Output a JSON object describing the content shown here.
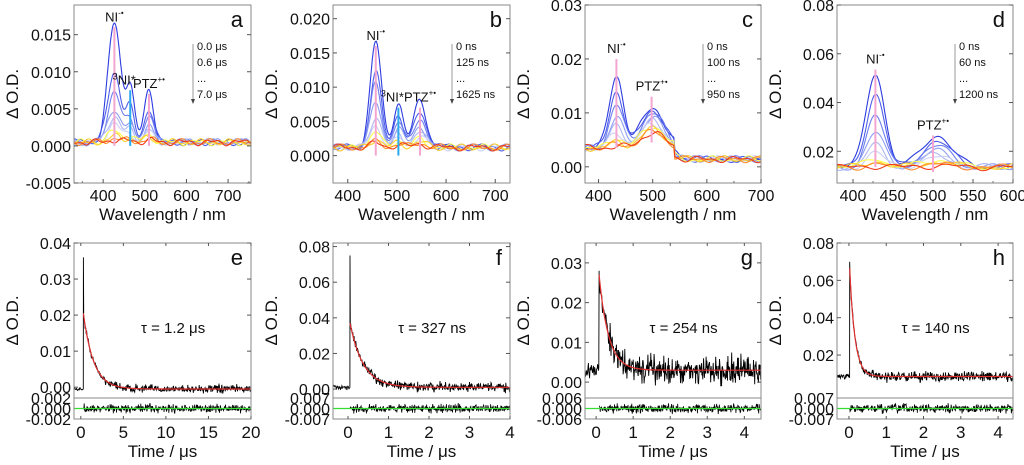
{
  "figure": {
    "rows": 2,
    "cols": 4
  },
  "chart_data": [
    {
      "panel": "a",
      "type": "line",
      "xlabel": "Wavelength / nm",
      "ylabel": "Δ O.D.",
      "xlim": [
        330,
        755
      ],
      "ylim": [
        -0.005,
        0.019
      ],
      "xticks": [
        400,
        500,
        600,
        700
      ],
      "yticks": [
        -0.005,
        0.0,
        0.005,
        0.01,
        0.015
      ],
      "ytick_labels": [
        "-0.005",
        "0.000",
        "0.005",
        "0.010",
        "0.015"
      ],
      "time_legend": [
        "0.0 μs",
        "0.6 μs",
        "...",
        "7.0 μs"
      ],
      "annotations": [
        {
          "label": "NI",
          "sup": "-•",
          "x": 427,
          "y": 0.016,
          "color": "#f4a6d0",
          "marker_from": 0.0
        },
        {
          "label": "NI*",
          "pre": "3",
          "x": 465,
          "y": 0.0075,
          "color": "#2aa8f0",
          "marker_from": 0.0
        },
        {
          "label": "PTZ",
          "sup": "+•",
          "x": 510,
          "y": 0.007,
          "color": "#f4a6d0",
          "marker_from": 0.0
        }
      ],
      "peaks": [
        {
          "x": 427,
          "w": 22
        },
        {
          "x": 465,
          "w": 14
        },
        {
          "x": 510,
          "w": 16
        }
      ],
      "spectra_peak_amplitudes": [
        [
          0.016,
          0.0075,
          0.007
        ],
        [
          0.0095,
          0.0045,
          0.0045
        ],
        [
          0.0068,
          0.0032,
          0.0033
        ],
        [
          0.0045,
          0.0022,
          0.0024
        ],
        [
          0.0035,
          0.0016,
          0.0018
        ],
        [
          0.0025,
          0.0012,
          0.0014
        ],
        [
          0.0015,
          0.0008,
          0.001
        ],
        [
          0.0008,
          0.0005,
          0.0006
        ],
        [
          0.0005,
          0.0003,
          0.0004
        ],
        [
          0.0003,
          0.0002,
          0.0003
        ]
      ],
      "baseline": 0.0005
    },
    {
      "panel": "b",
      "type": "line",
      "xlabel": "Wavelength / nm",
      "ylabel": "Δ O.D.",
      "xlim": [
        370,
        730
      ],
      "ylim": [
        -0.004,
        0.022
      ],
      "xticks": [
        400,
        500,
        600,
        700
      ],
      "yticks": [
        0.0,
        0.005,
        0.01,
        0.015,
        0.02
      ],
      "ytick_labels": [
        "0.000",
        "0.005",
        "0.010",
        "0.015",
        "0.020"
      ],
      "time_legend": [
        "0 ns",
        "125 ns",
        "...",
        "1625 ns"
      ],
      "annotations": [
        {
          "label": "NI",
          "sup": "-•",
          "x": 457,
          "y": 0.016,
          "color": "#f4a6d0",
          "marker_from": 0.0
        },
        {
          "label": "NI*",
          "pre": "3",
          "x": 503,
          "y": 0.007,
          "color": "#2aa8f0",
          "marker_from": 0.0
        },
        {
          "label": "PTZ",
          "sup": "+•",
          "x": 547,
          "y": 0.007,
          "color": "#f4a6d0",
          "marker_from": 0.0
        }
      ],
      "peaks": [
        {
          "x": 457,
          "w": 16
        },
        {
          "x": 503,
          "w": 14
        },
        {
          "x": 547,
          "w": 18
        }
      ],
      "spectra_peak_amplitudes": [
        [
          0.0155,
          0.0065,
          0.0068
        ],
        [
          0.011,
          0.0048,
          0.005
        ],
        [
          0.0092,
          0.0038,
          0.0042
        ],
        [
          0.0065,
          0.0028,
          0.003
        ],
        [
          0.0045,
          0.002,
          0.0022
        ],
        [
          0.0032,
          0.0014,
          0.0016
        ],
        [
          0.0022,
          0.001,
          0.0012
        ],
        [
          0.0012,
          0.0007,
          0.0008
        ],
        [
          0.0008,
          0.0005,
          0.0006
        ],
        [
          0.0006,
          0.0004,
          0.0005
        ]
      ],
      "baseline": 0.0012
    },
    {
      "panel": "c",
      "type": "line",
      "xlabel": "Wavelength / nm",
      "ylabel": "Δ O.D.",
      "xlim": [
        375,
        700
      ],
      "ylim": [
        -0.003,
        0.03
      ],
      "xticks": [
        400,
        500,
        600,
        700
      ],
      "yticks": [
        0.0,
        0.01,
        0.02,
        0.03
      ],
      "ytick_labels": [
        "0.00",
        "0.01",
        "0.02",
        "0.03"
      ],
      "time_legend": [
        "0 ns",
        "100 ns",
        "...",
        "950 ns"
      ],
      "annotations": [
        {
          "label": "NI",
          "sup": "-•",
          "x": 433,
          "y": 0.02,
          "color": "#f4a6d0",
          "marker_from": 0.0035
        },
        {
          "label": "PTZ",
          "sup": "+•",
          "x": 498,
          "y": 0.013,
          "color": "#f4a6d0",
          "marker_from": 0.0045
        }
      ],
      "peaks": [
        {
          "x": 433,
          "w": 18
        },
        {
          "x": 500,
          "w": 30
        }
      ],
      "spectra_peak_amplitudes": [
        [
          0.0135,
          0.0075
        ],
        [
          0.0105,
          0.007
        ],
        [
          0.008,
          0.0065
        ],
        [
          0.0055,
          0.0055
        ],
        [
          0.004,
          0.005
        ],
        [
          0.0028,
          0.0045
        ],
        [
          0.0018,
          0.004
        ],
        [
          0.001,
          0.0035
        ],
        [
          0.0006,
          0.003
        ],
        [
          0.0003,
          0.0028
        ]
      ],
      "baseline": 0.0035
    },
    {
      "panel": "d",
      "type": "line",
      "xlabel": "Wavelength / nm",
      "ylabel": "Δ O.D.",
      "xlim": [
        380,
        600
      ],
      "ylim": [
        0.007,
        0.08
      ],
      "xticks": [
        400,
        450,
        500,
        550,
        600
      ],
      "yticks": [
        0.02,
        0.04,
        0.06,
        0.08
      ],
      "ytick_labels": [
        "0.02",
        "0.04",
        "0.06",
        "0.08"
      ],
      "time_legend": [
        "0 ns",
        "60 ns",
        "...",
        "1200 ns"
      ],
      "annotations": [
        {
          "label": "NI",
          "sup": "-•",
          "x": 428,
          "y": 0.0535,
          "color": "#f4a6d0",
          "marker_from": 0.0135
        },
        {
          "label": "PTZ",
          "sup": "+•",
          "x": 500,
          "y": 0.0265,
          "color": "#f4a6d0",
          "marker_from": 0.0115
        }
      ],
      "peaks": [
        {
          "x": 428,
          "w": 16
        },
        {
          "x": 505,
          "w": 26
        }
      ],
      "spectra_peak_amplitudes": [
        [
          0.039,
          0.013
        ],
        [
          0.03,
          0.0105
        ],
        [
          0.021,
          0.0085
        ],
        [
          0.014,
          0.0065
        ],
        [
          0.009,
          0.005
        ],
        [
          0.006,
          0.004
        ],
        [
          0.004,
          0.003
        ],
        [
          0.0025,
          0.002
        ],
        [
          0.0012,
          0.0012
        ],
        [
          0.0005,
          0.0006
        ]
      ],
      "baseline": 0.0135
    },
    {
      "panel": "e",
      "type": "line",
      "xlabel": "Time / μs",
      "ylabel": "Δ O.D.",
      "xlim": [
        -0.8,
        20
      ],
      "ylim": [
        -0.003,
        0.04
      ],
      "xticks": [
        0,
        5,
        10,
        15,
        20
      ],
      "yticks": [
        0.0,
        0.01,
        0.02,
        0.03,
        0.04
      ],
      "ytick_labels": [
        "0.00",
        "0.01",
        "0.02",
        "0.03",
        "0.04"
      ],
      "residual_ylim": [
        -0.002,
        0.002
      ],
      "residual_tick_labels": [
        "0.002",
        "0.000",
        "-0.002"
      ],
      "tau_label": "τ = 1.2 μs",
      "tau": 1.2,
      "t0": 0.3,
      "spike": 0.036,
      "amplitude": 0.021,
      "offset": -0.0005,
      "noise": 0.0009,
      "time_unit_per_x": 1
    },
    {
      "panel": "f",
      "type": "line",
      "xlabel": "Time / μs",
      "ylabel": "Δ O.D.",
      "xlim": [
        -0.37,
        4
      ],
      "ylim": [
        -0.005,
        0.082
      ],
      "xticks": [
        0,
        1,
        2,
        3,
        4
      ],
      "yticks": [
        0.0,
        0.02,
        0.04,
        0.06,
        0.08
      ],
      "ytick_labels": [
        "0.00",
        "0.02",
        "0.04",
        "0.06",
        "0.08"
      ],
      "residual_ylim": [
        -0.007,
        0.007
      ],
      "residual_tick_labels": [
        "0.007",
        "0.000",
        "-0.007"
      ],
      "tau_label": "τ = 327 ns",
      "tau": 0.327,
      "t0": 0.05,
      "spike": 0.075,
      "amplitude": 0.036,
      "offset": 0.001,
      "noise": 0.0022
    },
    {
      "panel": "g",
      "type": "line",
      "xlabel": "Time / μs",
      "ylabel": "Δ O.D.",
      "xlim": [
        -0.3,
        4.45
      ],
      "ylim": [
        -0.004,
        0.035
      ],
      "xticks": [
        0,
        1,
        2,
        3,
        4
      ],
      "yticks": [
        0.0,
        0.01,
        0.02,
        0.03
      ],
      "ytick_labels": [
        "0.00",
        "0.01",
        "0.02",
        "0.03"
      ],
      "residual_ylim": [
        -0.006,
        0.006
      ],
      "residual_tick_labels": [
        "0.006",
        "0.000",
        "-0.006"
      ],
      "tau_label": "τ = 254 ns",
      "tau": 0.254,
      "t0": 0.08,
      "spike": 0.028,
      "amplitude": 0.024,
      "offset": 0.003,
      "noise": 0.0028
    },
    {
      "panel": "h",
      "type": "line",
      "xlabel": "Time / μs",
      "ylabel": "Δ O.D.",
      "xlim": [
        -0.32,
        4.4
      ],
      "ylim": [
        -0.003,
        0.08
      ],
      "xticks": [
        0,
        1,
        2,
        3,
        4
      ],
      "yticks": [
        0.02,
        0.04,
        0.06,
        0.08
      ],
      "ytick_labels": [
        "0.02",
        "0.04",
        "0.06",
        "0.08"
      ],
      "residual_ylim": [
        -0.007,
        0.007
      ],
      "residual_tick_labels": [
        "0.007",
        "0.000",
        "-0.007"
      ],
      "tau_label": "τ = 140 ns",
      "tau": 0.14,
      "t0": 0.02,
      "spike": 0.07,
      "amplitude": 0.058,
      "offset": 0.0085,
      "noise": 0.0022
    }
  ],
  "colors": {
    "fit": "#e03030",
    "residual_zero": "#33dd33",
    "data": "#000000",
    "frame": "#888888",
    "spectra_gradient": [
      "#2233dd",
      "#4455e8",
      "#6677ee",
      "#8899f0",
      "#aab4f2",
      "#c8cff5",
      "#ffff44",
      "#ffcc22",
      "#ff8822",
      "#ee3311"
    ]
  }
}
